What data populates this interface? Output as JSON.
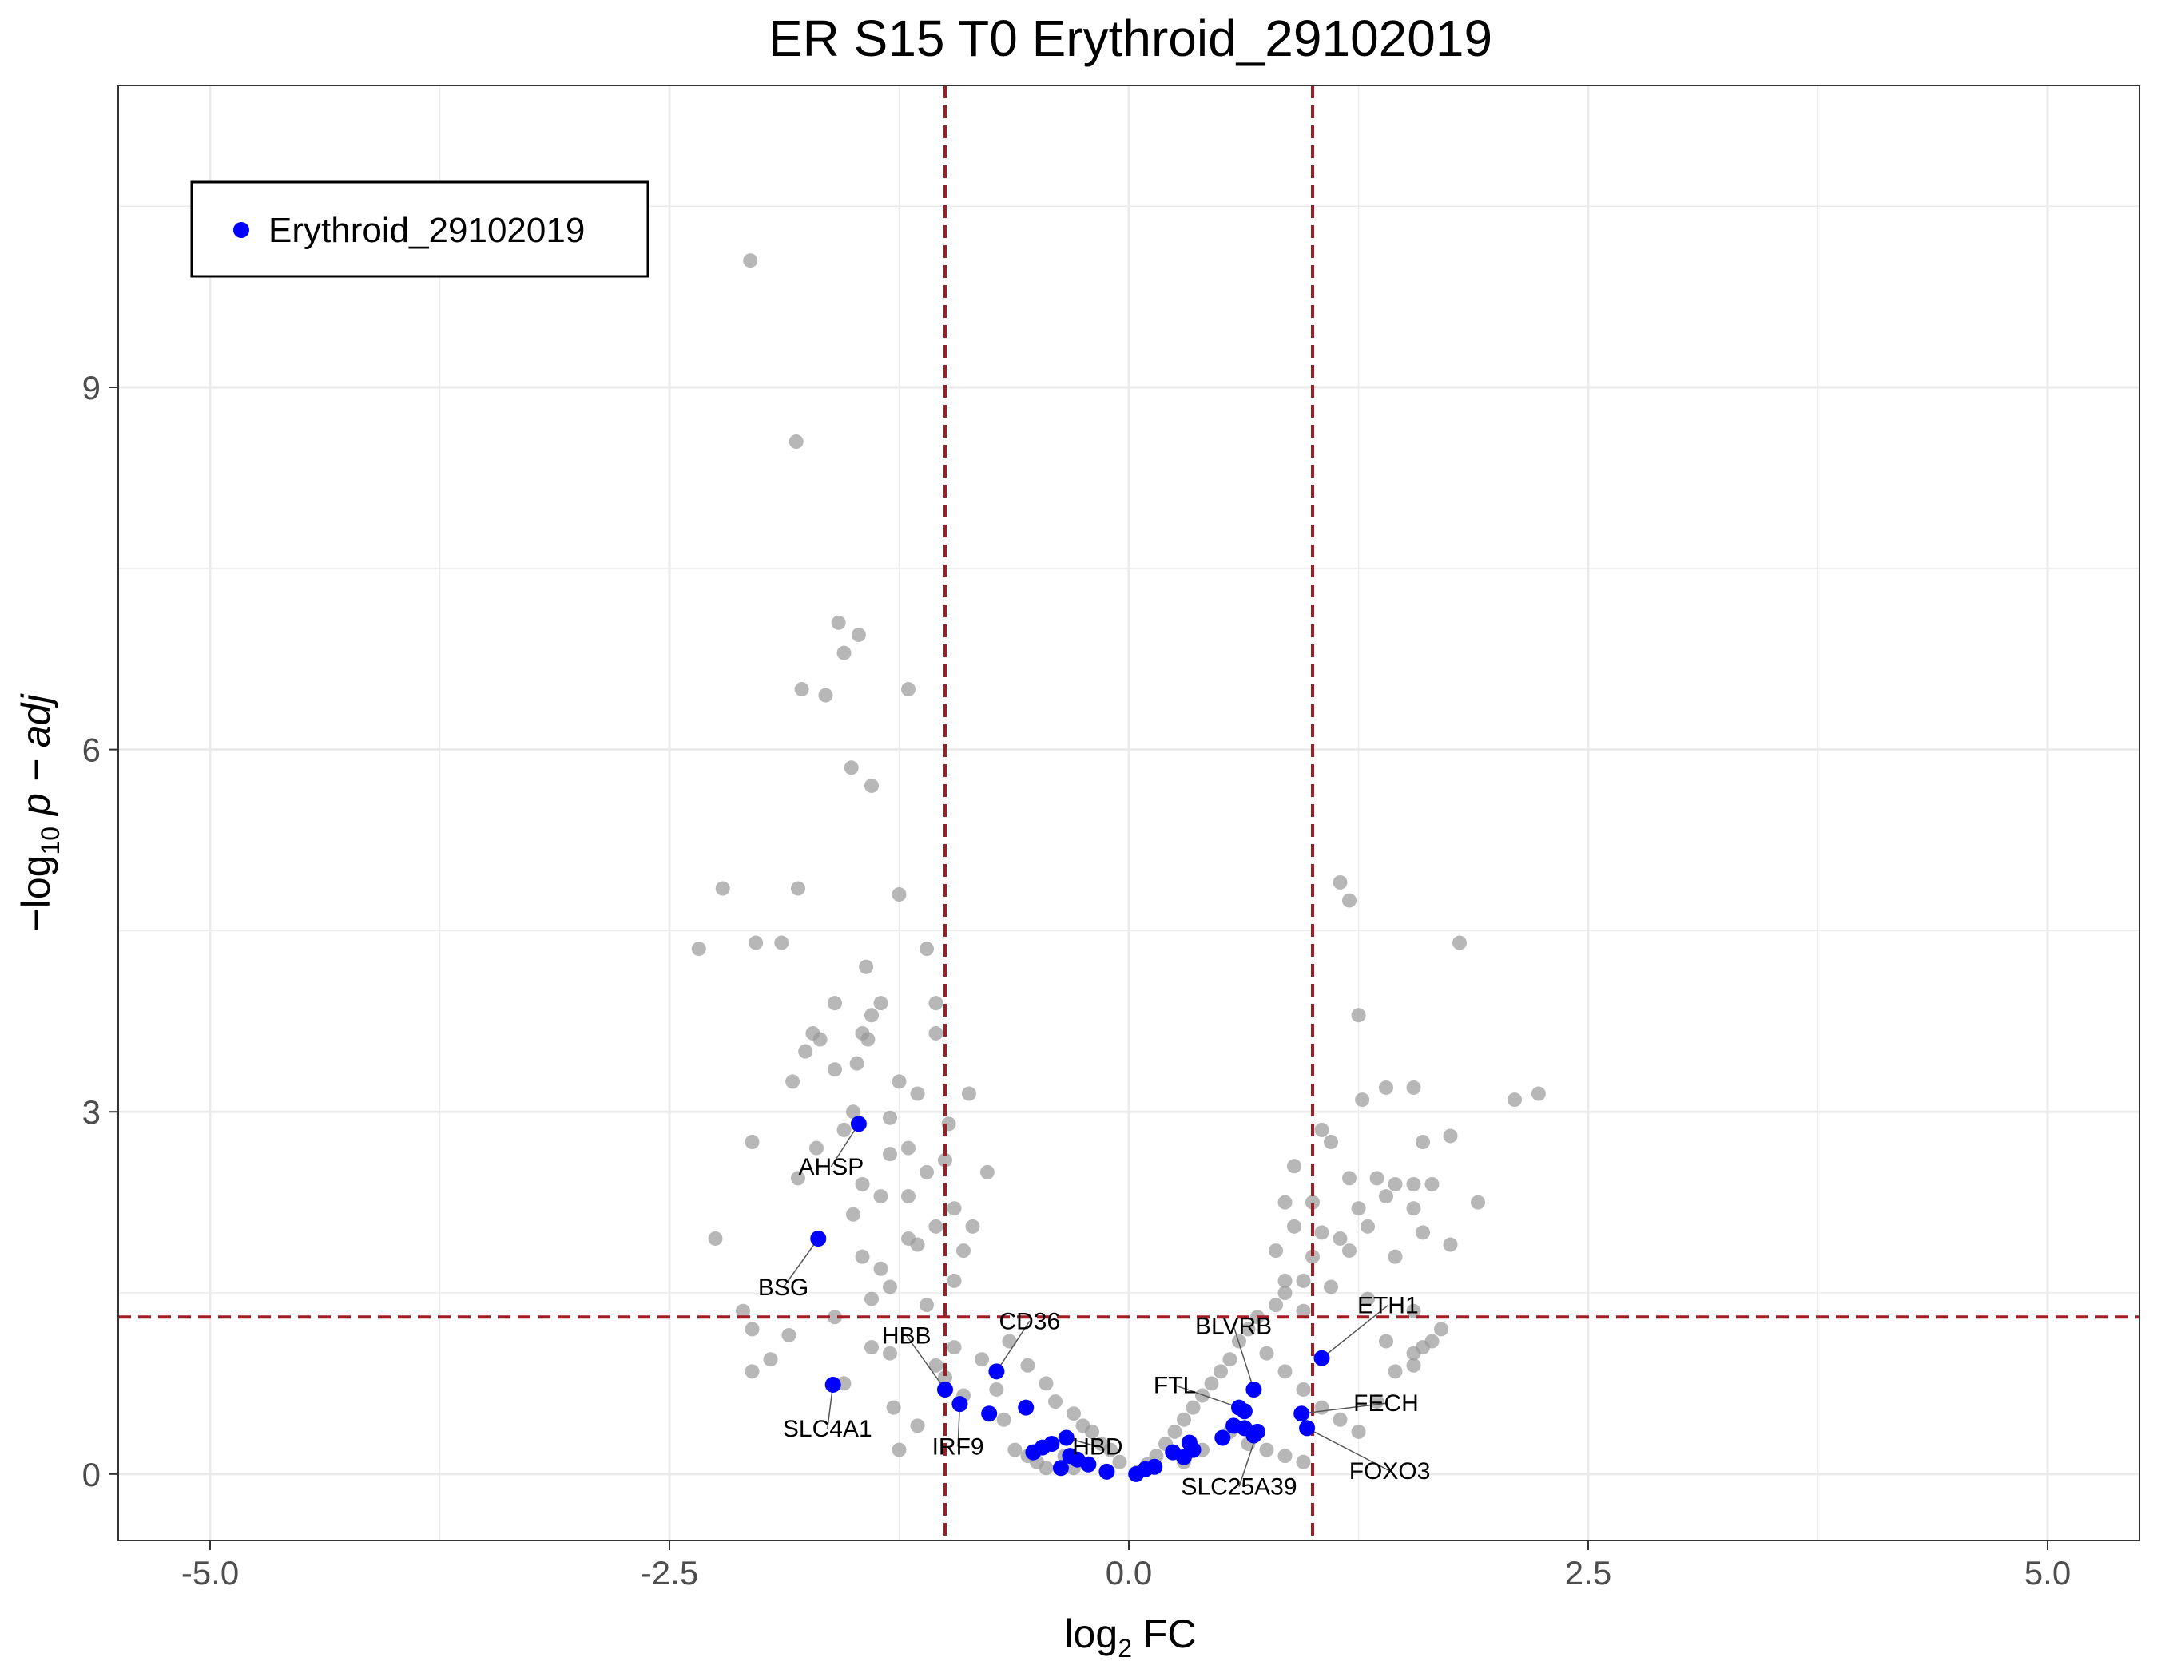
{
  "chart_data": {
    "type": "scatter",
    "title": "ER S15 T0 Erythroid_29102019",
    "xlabel": {
      "prefix": "log",
      "sub": "2",
      "suffix": " FC"
    },
    "ylabel": {
      "prefix": "−log",
      "sub": "10",
      "suffix": " p − adj"
    },
    "xlim": [
      -5.5,
      5.5
    ],
    "ylim": [
      -0.55,
      11.5
    ],
    "x_ticks": [
      -5.0,
      -2.5,
      0.0,
      2.5,
      5.0
    ],
    "x_tick_labels": [
      "-5.0",
      "-2.5",
      "0.0",
      "2.5",
      "5.0"
    ],
    "y_ticks": [
      0,
      3,
      6,
      9
    ],
    "y_tick_labels": [
      "0",
      "3",
      "6",
      "9"
    ],
    "grid": true,
    "thresholds": {
      "x": [
        -1.0,
        1.0
      ],
      "y": 1.3,
      "color": "#a01d26"
    },
    "legend": {
      "position": "top-left",
      "entries": [
        {
          "name": "Erythroid_29102019",
          "color": "#0000ff"
        }
      ]
    },
    "colors": {
      "background_points": "#999999",
      "highlight": "#0000ff",
      "grid": "#ebebeb"
    },
    "background_points": [
      [
        -2.06,
        10.05
      ],
      [
        -1.81,
        8.55
      ],
      [
        -1.58,
        7.05
      ],
      [
        -1.47,
        6.95
      ],
      [
        -1.55,
        6.8
      ],
      [
        -1.78,
        6.5
      ],
      [
        -1.65,
        6.45
      ],
      [
        -1.2,
        6.5
      ],
      [
        -1.51,
        5.85
      ],
      [
        -1.4,
        5.7
      ],
      [
        -2.21,
        4.85
      ],
      [
        -1.8,
        4.85
      ],
      [
        -1.25,
        4.8
      ],
      [
        -2.34,
        4.35
      ],
      [
        -2.03,
        4.4
      ],
      [
        -1.89,
        4.4
      ],
      [
        -1.1,
        4.35
      ],
      [
        -1.43,
        4.2
      ],
      [
        -1.6,
        3.9
      ],
      [
        -1.35,
        3.9
      ],
      [
        -1.05,
        3.9
      ],
      [
        -1.4,
        3.8
      ],
      [
        -1.72,
        3.65
      ],
      [
        -1.68,
        3.6
      ],
      [
        -1.45,
        3.65
      ],
      [
        -1.42,
        3.6
      ],
      [
        -1.76,
        3.5
      ],
      [
        -1.05,
        3.65
      ],
      [
        -1.48,
        3.4
      ],
      [
        -1.6,
        3.35
      ],
      [
        -1.83,
        3.25
      ],
      [
        -1.25,
        3.25
      ],
      [
        -1.15,
        3.15
      ],
      [
        -0.87,
        3.15
      ],
      [
        -1.5,
        3.0
      ],
      [
        -1.3,
        2.95
      ],
      [
        -0.98,
        2.9
      ],
      [
        -1.55,
        2.85
      ],
      [
        -1.2,
        2.7
      ],
      [
        -2.05,
        2.75
      ],
      [
        -1.7,
        2.7
      ],
      [
        -1.3,
        2.65
      ],
      [
        -1.0,
        2.6
      ],
      [
        -1.1,
        2.5
      ],
      [
        -0.77,
        2.5
      ],
      [
        -1.8,
        2.45
      ],
      [
        -1.45,
        2.4
      ],
      [
        -1.35,
        2.3
      ],
      [
        -1.2,
        2.3
      ],
      [
        -0.95,
        2.2
      ],
      [
        -1.5,
        2.15
      ],
      [
        -1.05,
        2.05
      ],
      [
        -0.85,
        2.05
      ],
      [
        -1.2,
        1.95
      ],
      [
        -1.15,
        1.9
      ],
      [
        -0.9,
        1.85
      ],
      [
        -2.25,
        1.95
      ],
      [
        -1.45,
        1.8
      ],
      [
        -1.35,
        1.7
      ],
      [
        -0.95,
        1.6
      ],
      [
        -1.3,
        1.55
      ],
      [
        -1.4,
        1.45
      ],
      [
        -1.1,
        1.4
      ],
      [
        -2.1,
        1.35
      ],
      [
        -1.6,
        1.3
      ],
      [
        -1.85,
        1.15
      ],
      [
        -1.4,
        1.05
      ],
      [
        -1.3,
        1.0
      ],
      [
        -2.05,
        1.2
      ],
      [
        -1.95,
        0.95
      ],
      [
        -2.05,
        0.85
      ],
      [
        -1.55,
        0.75
      ],
      [
        -1.28,
        0.55
      ],
      [
        -1.15,
        0.4
      ],
      [
        -1.25,
        0.2
      ],
      [
        -0.95,
        1.05
      ],
      [
        -0.8,
        0.95
      ],
      [
        -0.65,
        1.1
      ],
      [
        -0.55,
        0.9
      ],
      [
        -0.45,
        0.75
      ],
      [
        -0.4,
        0.6
      ],
      [
        -0.3,
        0.5
      ],
      [
        -0.25,
        0.4
      ],
      [
        -0.2,
        0.35
      ],
      [
        -0.15,
        0.25
      ],
      [
        -0.1,
        0.2
      ],
      [
        -0.05,
        0.1
      ],
      [
        -0.68,
        0.45
      ],
      [
        -0.62,
        0.2
      ],
      [
        -0.55,
        0.15
      ],
      [
        -0.5,
        0.1
      ],
      [
        -0.45,
        0.05
      ],
      [
        -0.9,
        0.65
      ],
      [
        -1.0,
        0.8
      ],
      [
        -1.05,
        0.9
      ],
      [
        -0.72,
        0.7
      ],
      [
        -0.35,
        0.15
      ],
      [
        -0.3,
        0.05
      ],
      [
        0.05,
        0.02
      ],
      [
        0.1,
        0.08
      ],
      [
        0.15,
        0.15
      ],
      [
        0.2,
        0.25
      ],
      [
        0.25,
        0.35
      ],
      [
        0.3,
        0.45
      ],
      [
        0.35,
        0.55
      ],
      [
        0.4,
        0.65
      ],
      [
        0.45,
        0.75
      ],
      [
        0.5,
        0.85
      ],
      [
        0.55,
        0.95
      ],
      [
        0.6,
        1.1
      ],
      [
        0.65,
        1.2
      ],
      [
        0.7,
        1.3
      ],
      [
        0.8,
        1.4
      ],
      [
        0.85,
        1.5
      ],
      [
        0.95,
        1.6
      ],
      [
        0.75,
        1.0
      ],
      [
        0.85,
        0.85
      ],
      [
        0.95,
        0.7
      ],
      [
        1.05,
        0.55
      ],
      [
        1.15,
        0.45
      ],
      [
        1.25,
        0.35
      ],
      [
        1.35,
        0.6
      ],
      [
        1.45,
        0.85
      ],
      [
        1.55,
        1.0
      ],
      [
        1.65,
        1.1
      ],
      [
        0.55,
        0.35
      ],
      [
        0.65,
        0.25
      ],
      [
        0.75,
        0.2
      ],
      [
        0.85,
        0.15
      ],
      [
        0.95,
        0.1
      ],
      [
        0.4,
        0.2
      ],
      [
        0.3,
        0.1
      ],
      [
        1.15,
        4.9
      ],
      [
        1.2,
        4.75
      ],
      [
        1.8,
        4.4
      ],
      [
        1.25,
        3.8
      ],
      [
        1.27,
        3.1
      ],
      [
        1.4,
        3.2
      ],
      [
        1.55,
        3.2
      ],
      [
        2.1,
        3.1
      ],
      [
        2.23,
        3.15
      ],
      [
        1.05,
        2.85
      ],
      [
        1.1,
        2.75
      ],
      [
        1.75,
        2.8
      ],
      [
        1.6,
        2.75
      ],
      [
        0.9,
        2.55
      ],
      [
        1.2,
        2.45
      ],
      [
        1.35,
        2.45
      ],
      [
        1.45,
        2.4
      ],
      [
        1.55,
        2.4
      ],
      [
        1.65,
        2.4
      ],
      [
        1.9,
        2.25
      ],
      [
        0.85,
        2.25
      ],
      [
        1.0,
        2.25
      ],
      [
        1.25,
        2.2
      ],
      [
        1.4,
        2.3
      ],
      [
        1.55,
        2.2
      ],
      [
        0.9,
        2.05
      ],
      [
        1.05,
        2.0
      ],
      [
        1.15,
        1.95
      ],
      [
        1.3,
        2.05
      ],
      [
        1.6,
        2.0
      ],
      [
        0.8,
        1.85
      ],
      [
        1.0,
        1.8
      ],
      [
        1.2,
        1.85
      ],
      [
        1.45,
        1.8
      ],
      [
        1.75,
        1.9
      ],
      [
        0.85,
        1.6
      ],
      [
        1.1,
        1.55
      ],
      [
        1.3,
        1.45
      ],
      [
        1.55,
        1.35
      ],
      [
        1.7,
        1.2
      ],
      [
        1.6,
        1.05
      ],
      [
        1.55,
        0.9
      ],
      [
        0.95,
        1.35
      ],
      [
        1.4,
        1.1
      ]
    ],
    "highlighted": [
      {
        "name": "AHSP",
        "x": -1.47,
        "y": 2.9,
        "label": "AHSP",
        "lx": -1.62,
        "ly": 2.48
      },
      {
        "name": "BSG",
        "x": -1.69,
        "y": 1.95,
        "label": "BSG",
        "lx": -1.88,
        "ly": 1.48
      },
      {
        "name": "SLC4A1",
        "x": -1.61,
        "y": 0.74,
        "label": "SLC4A1",
        "lx": -1.64,
        "ly": 0.31
      },
      {
        "name": "HBB",
        "x": -1.0,
        "y": 0.7,
        "label": "HBB",
        "lx": -1.21,
        "ly": 1.08
      },
      {
        "name": "CD36",
        "x": -0.72,
        "y": 0.85,
        "label": "CD36",
        "lx": -0.54,
        "ly": 1.2
      },
      {
        "name": "IRF9",
        "x": -0.92,
        "y": 0.58,
        "label": "IRF9",
        "lx": -0.93,
        "ly": 0.16
      },
      {
        "name": "HBD",
        "x": -0.34,
        "y": 0.3,
        "label": "HBD",
        "lx": -0.17,
        "ly": 0.16
      },
      {
        "name": "",
        "x": -0.76,
        "y": 0.5
      },
      {
        "name": "",
        "x": -0.56,
        "y": 0.55
      },
      {
        "name": "",
        "x": -0.52,
        "y": 0.18
      },
      {
        "name": "",
        "x": -0.47,
        "y": 0.22
      },
      {
        "name": "",
        "x": -0.42,
        "y": 0.25
      },
      {
        "name": "",
        "x": -0.37,
        "y": 0.05
      },
      {
        "name": "",
        "x": -0.32,
        "y": 0.15
      },
      {
        "name": "",
        "x": -0.28,
        "y": 0.12
      },
      {
        "name": "",
        "x": -0.22,
        "y": 0.08
      },
      {
        "name": "",
        "x": -0.12,
        "y": 0.02
      },
      {
        "name": "",
        "x": 0.04,
        "y": 0.0
      },
      {
        "name": "",
        "x": 0.09,
        "y": 0.04
      },
      {
        "name": "",
        "x": 0.14,
        "y": 0.06
      },
      {
        "name": "",
        "x": 0.24,
        "y": 0.18
      },
      {
        "name": "",
        "x": 0.3,
        "y": 0.14
      },
      {
        "name": "",
        "x": 0.33,
        "y": 0.26
      },
      {
        "name": "",
        "x": 0.35,
        "y": 0.2
      },
      {
        "name": "BLVRB",
        "x": 0.68,
        "y": 0.7,
        "label": "BLVRB",
        "lx": 0.57,
        "ly": 1.16
      },
      {
        "name": "FTL",
        "x": 0.6,
        "y": 0.55,
        "label": "FTL",
        "lx": 0.25,
        "ly": 0.67
      },
      {
        "name": "",
        "x": 0.63,
        "y": 0.52
      },
      {
        "name": "",
        "x": 0.57,
        "y": 0.4
      },
      {
        "name": "",
        "x": 0.51,
        "y": 0.3
      },
      {
        "name": "",
        "x": 0.63,
        "y": 0.38
      },
      {
        "name": "",
        "x": 0.68,
        "y": 0.32
      },
      {
        "name": "SLC25A39",
        "x": 0.7,
        "y": 0.35,
        "label": "SLC25A39",
        "lx": 0.6,
        "ly": -0.17
      },
      {
        "name": "ETH1",
        "x": 1.05,
        "y": 0.96,
        "label": "ETH1",
        "lx": 1.41,
        "ly": 1.33
      },
      {
        "name": "FECH",
        "x": 0.94,
        "y": 0.5,
        "label": "FECH",
        "lx": 1.4,
        "ly": 0.52
      },
      {
        "name": "FOXO3",
        "x": 0.97,
        "y": 0.38,
        "label": "FOXO3",
        "lx": 1.42,
        "ly": -0.04
      }
    ]
  }
}
